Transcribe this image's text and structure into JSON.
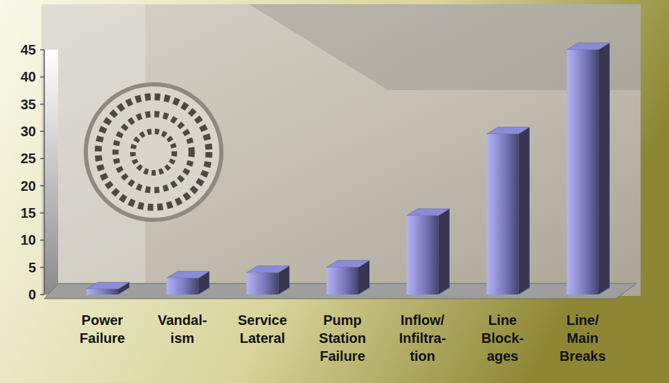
{
  "chart_data": {
    "type": "bar",
    "categories": [
      "Power\nFailure",
      "Vandal-\nism",
      "Service\nLateral",
      "Pump\nStation\nFailure",
      "Inflow/\nInfiltra-\ntion",
      "Line\nBlock-\nages",
      "Line/\nMain\nBreaks"
    ],
    "values": [
      1,
      3,
      4,
      5,
      14.5,
      29.5,
      45
    ],
    "color": "#9a9af0",
    "ylim": [
      0,
      45
    ],
    "yticks": [
      0,
      5,
      10,
      15,
      20,
      25,
      30,
      35,
      40,
      45
    ],
    "grid": false
  }
}
